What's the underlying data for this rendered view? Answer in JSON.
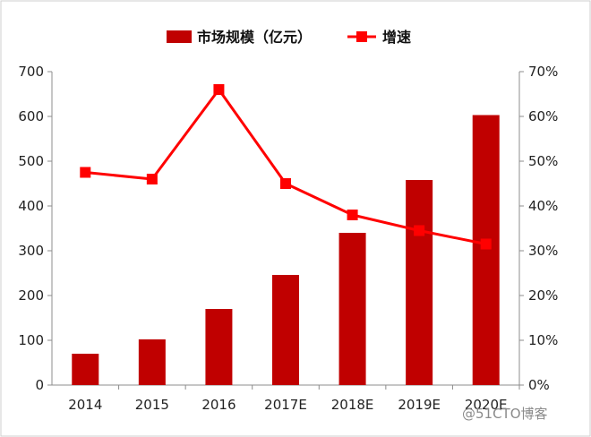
{
  "chart_data": {
    "type": "bar",
    "categories": [
      "2014",
      "2015",
      "2016",
      "2017E",
      "2018E",
      "2019E",
      "2020E"
    ],
    "series": [
      {
        "name": "市场规模（亿元）",
        "type": "bar",
        "axis": "left",
        "values": [
          70,
          102,
          170,
          246,
          340,
          458,
          603
        ],
        "color": "#c00000"
      },
      {
        "name": "增速",
        "type": "line",
        "axis": "right",
        "values": [
          47.5,
          46,
          66,
          45,
          38,
          34.5,
          31.5
        ],
        "color": "#ff0000",
        "marker": "square"
      }
    ],
    "ylim": [
      0,
      700
    ],
    "y_ticks": [
      "0",
      "100",
      "200",
      "300",
      "400",
      "500",
      "600",
      "700"
    ],
    "y2lim": [
      0,
      70
    ],
    "y2_ticks": [
      "0%",
      "10%",
      "20%",
      "30%",
      "40%",
      "50%",
      "60%",
      "70%"
    ],
    "grid": false,
    "legend_position": "top"
  },
  "watermark": "@51CTO博客"
}
